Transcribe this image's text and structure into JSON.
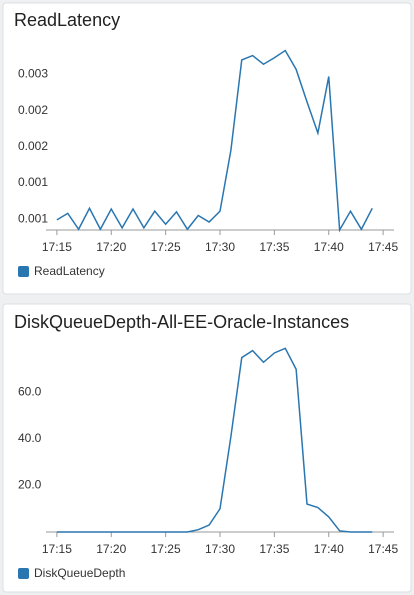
{
  "chart_data": [
    {
      "type": "line",
      "title": "ReadLatency",
      "x": [
        "17:15",
        "17:16",
        "17:17",
        "17:18",
        "17:19",
        "17:20",
        "17:21",
        "17:22",
        "17:23",
        "17:24",
        "17:25",
        "17:26",
        "17:27",
        "17:28",
        "17:29",
        "17:30",
        "17:31",
        "17:32",
        "17:33",
        "17:34",
        "17:35",
        "17:36",
        "17:37",
        "17:38",
        "17:39",
        "17:40",
        "17:41",
        "17:42",
        "17:43",
        "17:44"
      ],
      "series": [
        {
          "name": "ReadLatency",
          "color": "#2a76b0",
          "values": [
            0.00049,
            0.00058,
            0.00036,
            0.00065,
            0.00036,
            0.00064,
            0.00038,
            0.00064,
            0.00038,
            0.00061,
            0.00043,
            0.0006,
            0.00036,
            0.00055,
            0.00046,
            0.00061,
            0.00145,
            0.0027,
            0.00276,
            0.00264,
            0.00273,
            0.00283,
            0.00257,
            0.00212,
            0.00169,
            0.00247,
            0.00035,
            0.00061,
            0.00036,
            0.00065
          ]
        }
      ],
      "xlim": [
        "17:14",
        "17:46"
      ],
      "xticks": [
        "17:15",
        "17:20",
        "17:25",
        "17:30",
        "17:35",
        "17:40",
        "17:45"
      ],
      "ylim": [
        0.00035,
        0.00292
      ],
      "yticks": [
        {
          "value": 0.0005,
          "label": "0.001"
        },
        0.001,
        {
          "value": 0.0015,
          "label": "0.002"
        },
        0.002,
        {
          "value": 0.0025,
          "label": "0.003"
        }
      ],
      "grid": false,
      "legend": "bottom-left"
    },
    {
      "type": "line",
      "title": "DiskQueueDepth-All-EE-Oracle-Instances",
      "x": [
        "17:15",
        "17:16",
        "17:17",
        "17:18",
        "17:19",
        "17:20",
        "17:21",
        "17:22",
        "17:23",
        "17:24",
        "17:25",
        "17:26",
        "17:27",
        "17:28",
        "17:29",
        "17:30",
        "17:31",
        "17:32",
        "17:33",
        "17:34",
        "17:35",
        "17:36",
        "17:37",
        "17:38",
        "17:39",
        "17:40",
        "17:41",
        "17:42",
        "17:43",
        "17:44"
      ],
      "series": [
        {
          "name": "DiskQueueDepth",
          "color": "#2a76b0",
          "values": [
            0,
            0,
            0,
            0,
            0,
            0,
            0,
            0,
            0,
            0,
            0,
            0,
            0,
            1,
            3,
            10,
            41,
            75,
            78,
            73,
            77,
            79,
            70,
            12,
            10.5,
            6.5,
            0.5,
            0,
            0,
            0
          ]
        }
      ],
      "xlim": [
        "17:14",
        "17:46"
      ],
      "xticks": [
        "17:15",
        "17:20",
        "17:25",
        "17:30",
        "17:35",
        "17:40",
        "17:45"
      ],
      "ylim": [
        0,
        80
      ],
      "yticks": [
        {
          "value": 20,
          "label": "20.0"
        },
        {
          "value": 40,
          "label": "40.0"
        },
        {
          "value": 60,
          "label": "60.0"
        }
      ],
      "grid": false,
      "legend": "bottom-left"
    }
  ]
}
